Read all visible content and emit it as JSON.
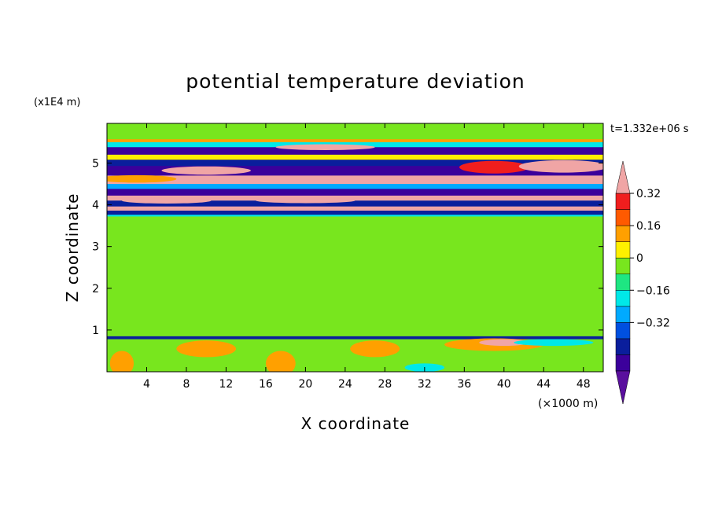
{
  "chart_data": {
    "type": "heatmap",
    "title": "potential temperature deviation",
    "xlabel": "X coordinate",
    "ylabel": "Z coordinate",
    "x_unit": "(×1000 m)",
    "y_unit": "(x1E4 m)",
    "time_label": "t=1.332e+06 s",
    "xlim": [
      0,
      50
    ],
    "ylim": [
      0,
      5.95
    ],
    "x_ticks": [
      4,
      8,
      12,
      16,
      20,
      24,
      28,
      32,
      36,
      40,
      44,
      48
    ],
    "y_ticks": [
      1,
      2,
      3,
      4,
      5
    ],
    "colorbar": {
      "levels": [
        -0.48,
        -0.4,
        -0.32,
        -0.24,
        -0.16,
        -0.08,
        0,
        0.08,
        0.16,
        0.24,
        0.32,
        0.4
      ],
      "colors": [
        "#5a0f9e",
        "#3b009b",
        "#0a1e9c",
        "#0050e0",
        "#00aaff",
        "#00e8e8",
        "#1ee682",
        "#78e61e",
        "#fff000",
        "#ffa000",
        "#ff5a00",
        "#f01e1e",
        "#f0a5a5"
      ],
      "tick_labels": [
        {
          "value": 0.32,
          "text": "0.32"
        },
        {
          "value": 0.16,
          "text": "0.16"
        },
        {
          "value": 0,
          "text": "0"
        },
        {
          "value": -0.16,
          "text": "−0.16"
        },
        {
          "value": -0.32,
          "text": "−0.32"
        }
      ]
    },
    "bands": [
      {
        "z0": 5.57,
        "z1": 5.95,
        "value": 0.04
      },
      {
        "z0": 5.5,
        "z1": 5.57,
        "value": 0.2
      },
      {
        "z0": 5.38,
        "z1": 5.5,
        "value": -0.12
      },
      {
        "z0": 5.2,
        "z1": 5.38,
        "value": -0.42
      },
      {
        "z0": 5.08,
        "z1": 5.2,
        "value": 0.12
      },
      {
        "z0": 4.93,
        "z1": 5.08,
        "value": -0.36
      },
      {
        "z0": 4.7,
        "z1": 4.93,
        "value": -0.44
      },
      {
        "z0": 4.5,
        "z1": 4.7,
        "value": 0.44
      },
      {
        "z0": 4.38,
        "z1": 4.5,
        "value": -0.2
      },
      {
        "z0": 4.22,
        "z1": 4.38,
        "value": -0.44
      },
      {
        "z0": 4.1,
        "z1": 4.22,
        "value": 0.44
      },
      {
        "z0": 3.96,
        "z1": 4.1,
        "value": -0.36
      },
      {
        "z0": 3.86,
        "z1": 3.96,
        "value": 0.44
      },
      {
        "z0": 3.76,
        "z1": 3.86,
        "value": -0.4
      },
      {
        "z0": 3.72,
        "z1": 3.76,
        "value": -0.12
      },
      {
        "z0": 0.85,
        "z1": 3.72,
        "value": 0.04
      },
      {
        "z0": 0.78,
        "z1": 0.85,
        "value": -0.36
      },
      {
        "z0": 0,
        "z1": 0.78,
        "value": 0.04
      }
    ],
    "patches": [
      {
        "x": 22,
        "z": 5.38,
        "rx": 5,
        "rz": 0.07,
        "value": 0.44
      },
      {
        "x": 10,
        "z": 4.82,
        "rx": 4.5,
        "rz": 0.1,
        "value": 0.44
      },
      {
        "x": 39,
        "z": 4.9,
        "rx": 3.5,
        "rz": 0.15,
        "value": 0.32
      },
      {
        "x": 46,
        "z": 4.92,
        "rx": 4.5,
        "rz": 0.15,
        "value": 0.44
      },
      {
        "x": 3,
        "z": 4.62,
        "rx": 4,
        "rz": 0.09,
        "value": 0.2
      },
      {
        "x": 6,
        "z": 4.1,
        "rx": 4.5,
        "rz": 0.07,
        "value": 0.44
      },
      {
        "x": 20,
        "z": 4.1,
        "rx": 5,
        "rz": 0.06,
        "value": 0.44
      },
      {
        "x": 1.5,
        "z": 0.2,
        "rx": 1.2,
        "rz": 0.3,
        "value": 0.2
      },
      {
        "x": 10,
        "z": 0.55,
        "rx": 3,
        "rz": 0.2,
        "value": 0.2
      },
      {
        "x": 17.5,
        "z": 0.2,
        "rx": 1.5,
        "rz": 0.3,
        "value": 0.2
      },
      {
        "x": 27,
        "z": 0.55,
        "rx": 2.5,
        "rz": 0.2,
        "value": 0.16
      },
      {
        "x": 39,
        "z": 0.65,
        "rx": 5,
        "rz": 0.15,
        "value": 0.2
      },
      {
        "x": 40,
        "z": 0.7,
        "rx": 2.5,
        "rz": 0.08,
        "value": 0.44
      },
      {
        "x": 45,
        "z": 0.7,
        "rx": 4,
        "rz": 0.08,
        "value": -0.1
      },
      {
        "x": 32,
        "z": 0.1,
        "rx": 2,
        "rz": 0.1,
        "value": -0.1
      }
    ]
  }
}
